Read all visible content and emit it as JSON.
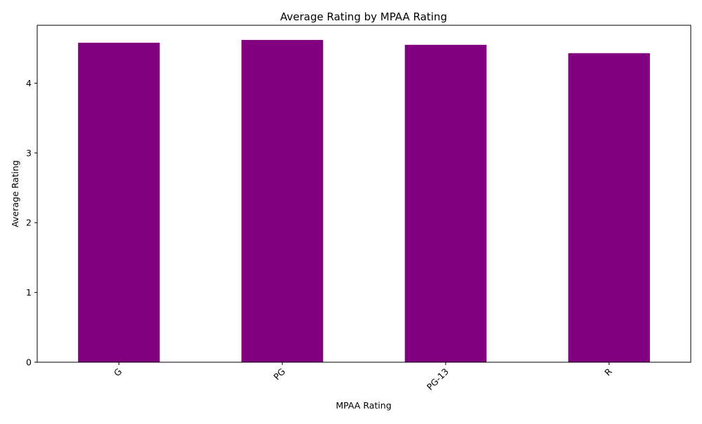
{
  "chart_data": {
    "type": "bar",
    "title": "Average Rating by MPAA Rating",
    "xlabel": "MPAA Rating",
    "ylabel": "Average Rating",
    "categories": [
      "G",
      "PG",
      "PG-13",
      "R"
    ],
    "values": [
      4.58,
      4.62,
      4.55,
      4.43
    ],
    "ylim": [
      0,
      4.83
    ],
    "yticks": [
      0,
      1,
      2,
      3,
      4
    ],
    "bar_color": "#800080",
    "grid": false,
    "xtick_rotation": -45
  }
}
